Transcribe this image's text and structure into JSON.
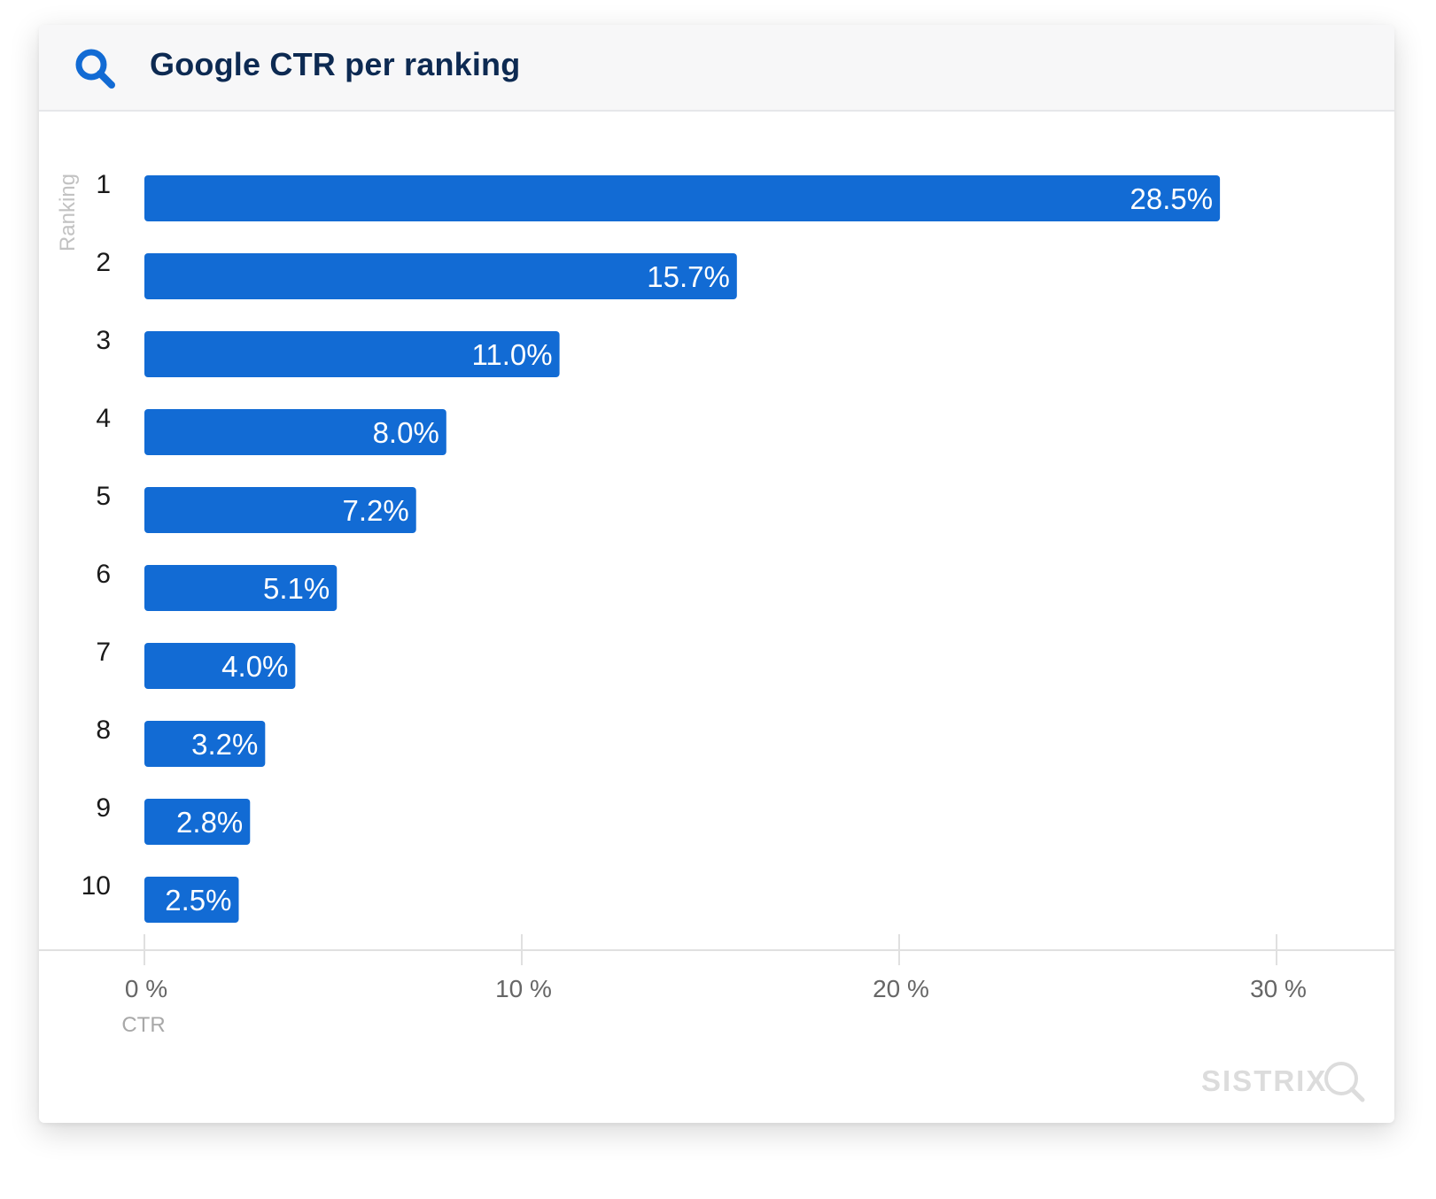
{
  "header": {
    "title": "Google CTR per ranking",
    "icon": "search-icon"
  },
  "chart_data": {
    "type": "bar",
    "orientation": "horizontal",
    "title": "Google CTR per ranking",
    "categories": [
      "1",
      "2",
      "3",
      "4",
      "5",
      "6",
      "7",
      "8",
      "9",
      "10"
    ],
    "values": [
      28.5,
      15.7,
      11.0,
      8.0,
      7.2,
      5.1,
      4.0,
      3.2,
      2.8,
      2.5
    ],
    "data_labels": [
      "28.5%",
      "15.7%",
      "11.0%",
      "8.0%",
      "7.2%",
      "5.1%",
      "4.0%",
      "3.2%",
      "2.8%",
      "2.5%"
    ],
    "xlabel": "CTR",
    "ylabel": "Ranking",
    "xlim": [
      0,
      30
    ],
    "x_ticks": [
      0,
      10,
      20,
      30
    ],
    "x_tick_labels": [
      "0 %",
      "10 %",
      "20 %",
      "30 %"
    ],
    "grid": false,
    "legend": "none"
  },
  "watermark": {
    "text": "SISTRIX",
    "icon": "magnifier-icon"
  },
  "colors": {
    "bar": "#126bd4",
    "title": "#0d2a52",
    "header_bg": "#f7f7f8",
    "axis_text": "#666666",
    "watermark": "#dcdcdc"
  }
}
